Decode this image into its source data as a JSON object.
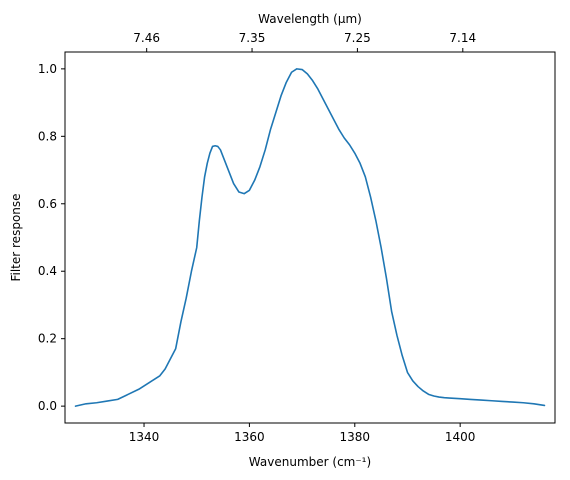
{
  "chart_data": {
    "type": "line",
    "xlabel": "Wavenumber (cm⁻¹)",
    "ylabel": "Filter response",
    "x2label": "Wavelength (μm)",
    "xlim": [
      1325,
      1418
    ],
    "ylim": [
      -0.05,
      1.05
    ],
    "grid": false,
    "line_color": "#1f77b4",
    "xticks": [
      1340,
      1360,
      1380,
      1400
    ],
    "yticks": [
      0.0,
      0.2,
      0.4,
      0.6,
      0.8,
      1.0
    ],
    "x2ticks": [
      {
        "label": "7.46",
        "wavenumber": 1340.5
      },
      {
        "label": "7.35",
        "wavenumber": 1360.5
      },
      {
        "label": "7.25",
        "wavenumber": 1380.5
      },
      {
        "label": "7.14",
        "wavenumber": 1400.5
      }
    ],
    "series": [
      {
        "x": [
          1327,
          1329,
          1331,
          1333,
          1335,
          1337,
          1339,
          1340,
          1341,
          1342,
          1343,
          1344,
          1345,
          1346,
          1347,
          1348,
          1349,
          1350,
          1350.5,
          1351,
          1351.5,
          1352,
          1352.5,
          1353,
          1353.5,
          1354,
          1354.5,
          1355,
          1356,
          1357,
          1358,
          1359,
          1360,
          1361,
          1362,
          1363,
          1364,
          1365,
          1366,
          1367,
          1368,
          1369,
          1370,
          1371,
          1372,
          1373,
          1374,
          1375,
          1376,
          1377,
          1378,
          1379,
          1380,
          1381,
          1382,
          1383,
          1384,
          1385,
          1386,
          1387,
          1388,
          1389,
          1390,
          1391,
          1392,
          1393,
          1394,
          1395,
          1396,
          1397,
          1398,
          1400,
          1402,
          1404,
          1406,
          1408,
          1410,
          1412,
          1414,
          1416
        ],
        "y": [
          0.0,
          0.007,
          0.01,
          0.015,
          0.02,
          0.035,
          0.05,
          0.06,
          0.07,
          0.08,
          0.09,
          0.11,
          0.14,
          0.17,
          0.25,
          0.32,
          0.4,
          0.47,
          0.55,
          0.62,
          0.68,
          0.72,
          0.75,
          0.77,
          0.772,
          0.77,
          0.76,
          0.74,
          0.7,
          0.66,
          0.635,
          0.63,
          0.64,
          0.67,
          0.71,
          0.76,
          0.82,
          0.87,
          0.92,
          0.96,
          0.99,
          1.0,
          0.998,
          0.985,
          0.965,
          0.94,
          0.91,
          0.88,
          0.85,
          0.82,
          0.795,
          0.775,
          0.75,
          0.72,
          0.68,
          0.62,
          0.55,
          0.47,
          0.38,
          0.28,
          0.21,
          0.15,
          0.1,
          0.075,
          0.058,
          0.045,
          0.035,
          0.03,
          0.027,
          0.025,
          0.024,
          0.022,
          0.02,
          0.018,
          0.016,
          0.014,
          0.012,
          0.01,
          0.007,
          0.002
        ]
      }
    ]
  }
}
